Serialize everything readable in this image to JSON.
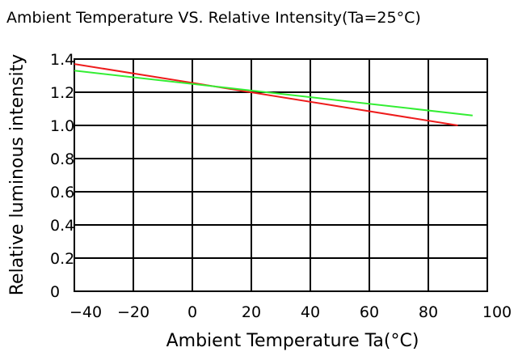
{
  "chart_data": {
    "type": "line",
    "title": "Ambient Temperature VS. Relative Intensity(Ta=25°C)",
    "xlabel": "Ambient Temperature Ta(°C)",
    "ylabel": "Relative luminous intensity",
    "xlim": [
      -40,
      100
    ],
    "ylim": [
      0,
      1.4
    ],
    "xticks": [
      "-40",
      "-20",
      "0",
      "20",
      "40",
      "60",
      "80",
      "100"
    ],
    "yticks": [
      "0",
      "0.2",
      "0.4",
      "0.6",
      "0.8",
      "1.0",
      "1.2",
      "1.4"
    ],
    "grid": true,
    "series": [
      {
        "color": "#ee1c1c",
        "x": [
          -40,
          90
        ],
        "y": [
          1.37,
          1.0
        ]
      },
      {
        "color": "#33ee33",
        "x": [
          -40,
          95
        ],
        "y": [
          1.33,
          1.06
        ]
      }
    ]
  }
}
